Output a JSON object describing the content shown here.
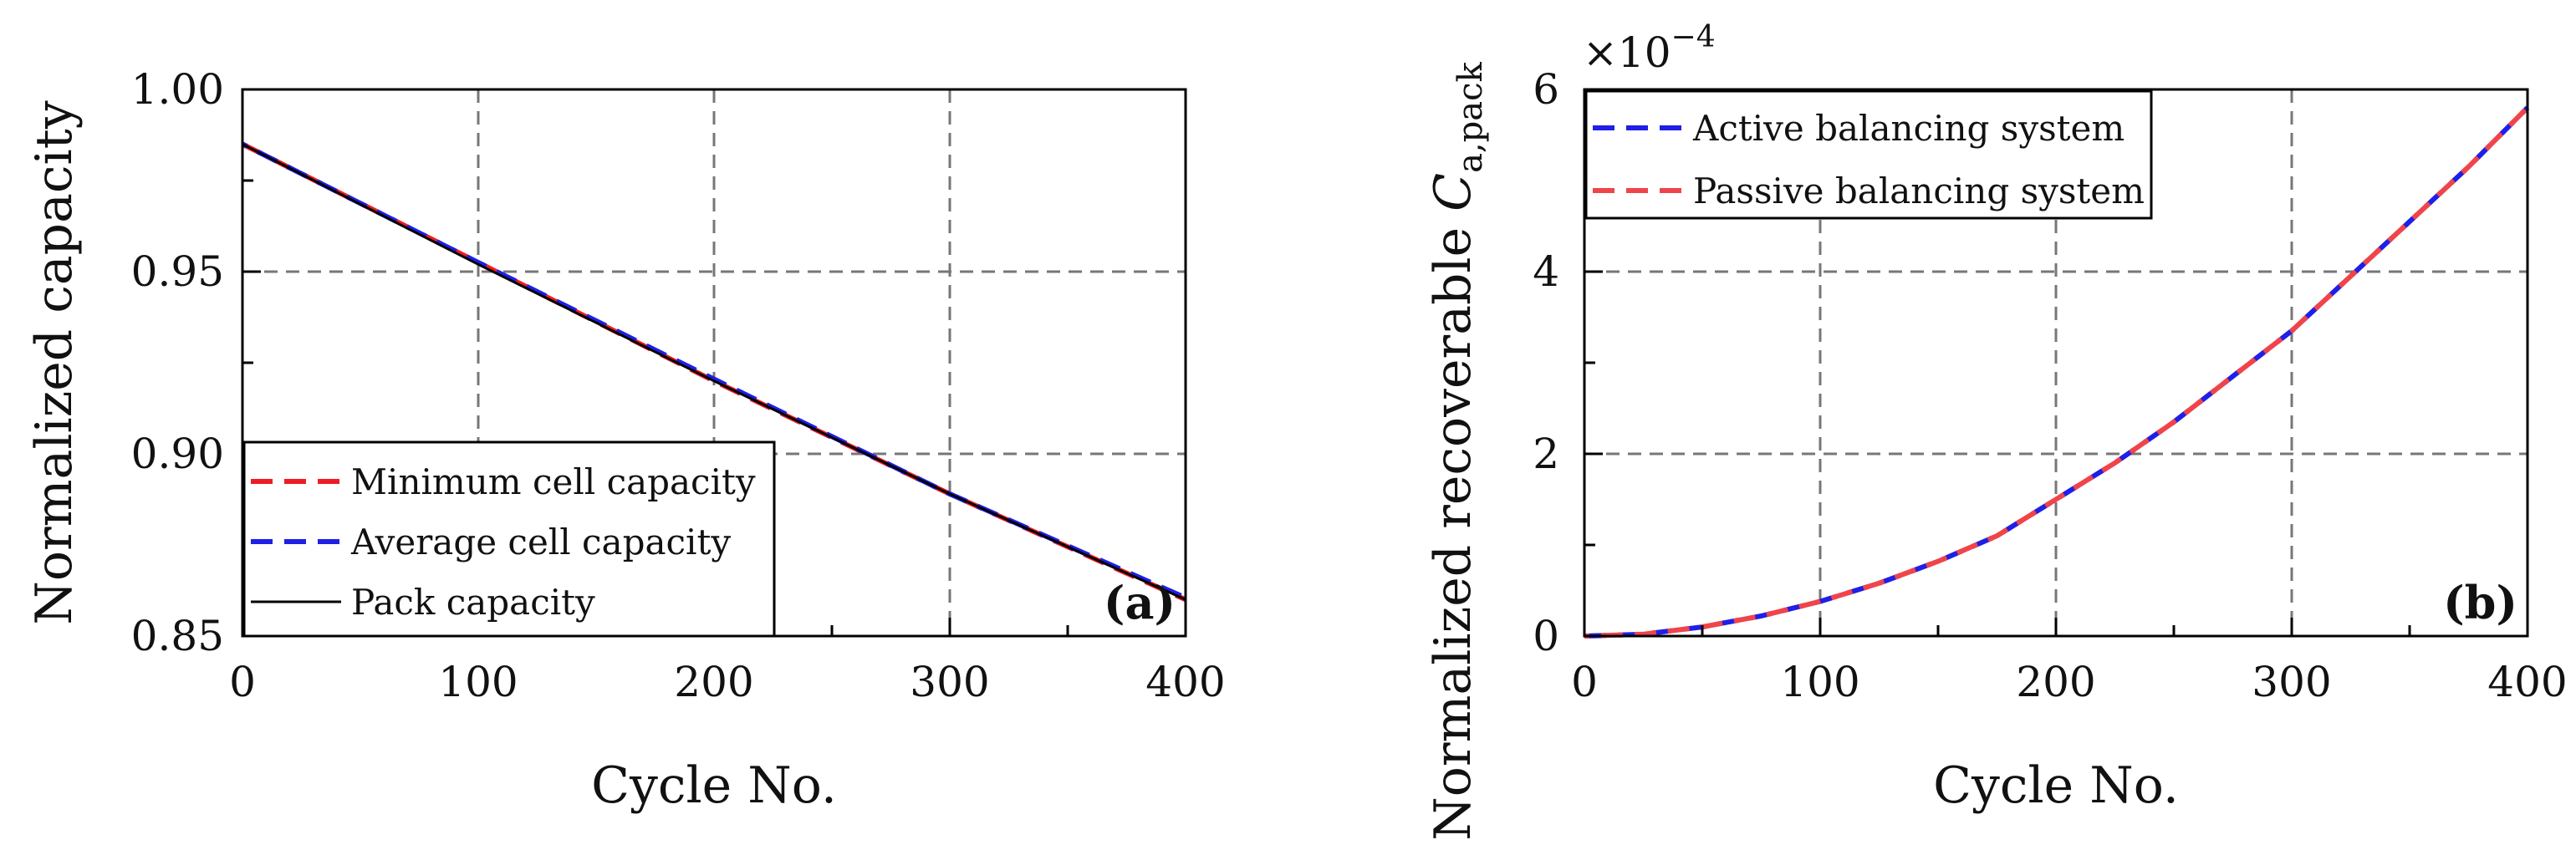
{
  "chart_data": [
    {
      "type": "line",
      "panel_label": "(a)",
      "panel_label_parts": [
        "(",
        "a",
        ")"
      ],
      "title": "",
      "xlabel": "Cycle No.",
      "ylabel": "Normalized capacity",
      "xlim": [
        0,
        400
      ],
      "ylim": [
        0.85,
        1.0
      ],
      "xticks": [
        0,
        100,
        200,
        300,
        400
      ],
      "xtick_labels": [
        "0",
        "100",
        "200",
        "300",
        "400"
      ],
      "yticks": [
        0.85,
        0.9,
        0.95,
        1.0
      ],
      "ytick_labels": [
        "0.85",
        "0.90",
        "0.95",
        "1.00"
      ],
      "grid": true,
      "legend_position": "bottom-left",
      "series": [
        {
          "name": "Minimum cell capacity",
          "color": "#ee1c25",
          "style": "dashed",
          "x": [
            0,
            100,
            200,
            300,
            400
          ],
          "y": [
            0.985,
            0.9525,
            0.92,
            0.889,
            0.86
          ]
        },
        {
          "name": "Average cell capacity",
          "color": "#1f1fe6",
          "style": "dashed",
          "x": [
            0,
            100,
            200,
            300,
            400
          ],
          "y": [
            0.985,
            0.9525,
            0.9205,
            0.889,
            0.8605
          ]
        },
        {
          "name": "Pack capacity",
          "color": "#000000",
          "style": "solid",
          "x": [
            0,
            100,
            200,
            300,
            400
          ],
          "y": [
            0.985,
            0.952,
            0.92,
            0.889,
            0.86
          ]
        }
      ]
    },
    {
      "type": "line",
      "panel_label": "(b)",
      "panel_label_parts": [
        "(",
        "b",
        ")"
      ],
      "title": "",
      "xlabel": "Cycle No.",
      "ylabel": "Normalized recoverable ",
      "ylabel_symbol": "C",
      "ylabel_subscript": "a,pack",
      "y_multiplier": "×10",
      "y_multiplier_exponent": "−4",
      "xlim": [
        0,
        400
      ],
      "ylim": [
        0,
        6
      ],
      "xticks": [
        0,
        100,
        200,
        300,
        400
      ],
      "xtick_labels": [
        "0",
        "100",
        "200",
        "300",
        "400"
      ],
      "yticks": [
        0,
        2,
        4,
        6
      ],
      "ytick_labels": [
        "0",
        "2",
        "4",
        "6"
      ],
      "grid": true,
      "legend_position": "top-left",
      "series": [
        {
          "name": "Active balancing system",
          "color": "#1f1fe6",
          "style": "dashed",
          "x": [
            0,
            25,
            50,
            75,
            100,
            125,
            150,
            175,
            200,
            225,
            250,
            275,
            300,
            325,
            350,
            375,
            400
          ],
          "y": [
            0,
            0.02,
            0.1,
            0.22,
            0.38,
            0.58,
            0.82,
            1.1,
            1.5,
            1.9,
            2.35,
            2.85,
            3.35,
            3.95,
            4.55,
            5.15,
            5.8
          ]
        },
        {
          "name": "Passive balancing system",
          "color": "#f0444b",
          "style": "dashed",
          "x": [
            0,
            25,
            50,
            75,
            100,
            125,
            150,
            175,
            200,
            225,
            250,
            275,
            300,
            325,
            350,
            375,
            400
          ],
          "y": [
            0,
            0.02,
            0.1,
            0.22,
            0.38,
            0.58,
            0.82,
            1.1,
            1.5,
            1.9,
            2.35,
            2.85,
            3.35,
            3.95,
            4.55,
            5.15,
            5.8
          ]
        }
      ]
    }
  ]
}
